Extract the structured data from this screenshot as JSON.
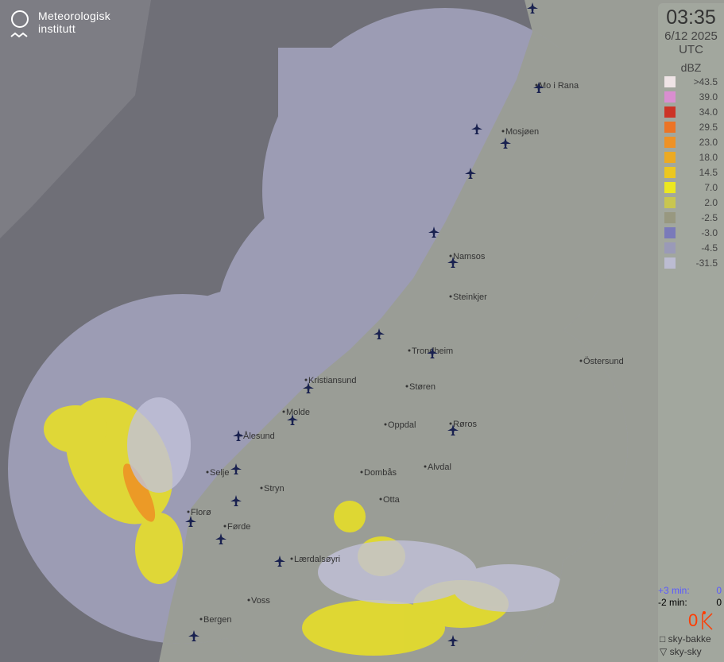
{
  "logo": {
    "line1": "Meteorologisk",
    "line2": "institutt"
  },
  "time": "03:35",
  "date": "6/12 2025",
  "timezone": "UTC",
  "legend": {
    "unit": "dBZ",
    "items": [
      {
        "label": ">43.5",
        "color": "#efe4e6"
      },
      {
        "label": "39.0",
        "color": "#d98ed0"
      },
      {
        "label": "34.0",
        "color": "#cc3326"
      },
      {
        "label": "29.5",
        "color": "#ec7426"
      },
      {
        "label": "23.0",
        "color": "#ee9226"
      },
      {
        "label": "18.0",
        "color": "#ecaa22"
      },
      {
        "label": "14.5",
        "color": "#ecc720"
      },
      {
        "label": "7.0",
        "color": "#ece820"
      },
      {
        "label": "2.0",
        "color": "#c9c650"
      },
      {
        "label": "-2.5",
        "color": "#989880"
      },
      {
        "label": "-3.0",
        "color": "#7a7aba"
      },
      {
        "label": "-4.5",
        "color": "#9a9ab8"
      },
      {
        "label": "-31.5",
        "color": "#bcbcd2"
      }
    ]
  },
  "lightning": {
    "plus3_label": "+3 min:",
    "plus3_value": "0",
    "minus2_label": "-2 min:",
    "minus2_value": "0",
    "count": "0",
    "types": [
      {
        "symbol": "□",
        "label": "sky-bakke"
      },
      {
        "symbol": "▽",
        "label": "sky-sky"
      }
    ]
  },
  "cities": [
    "Mo i Rana",
    "Mosjøen",
    "Namsos",
    "Steinkjer",
    "Trondheim",
    "Östersund",
    "Kristiansund",
    "Støren",
    "Molde",
    "Ålesund",
    "Oppdal",
    "Røros",
    "Selje",
    "Stryn",
    "Dombås",
    "Alvdal",
    "Florø",
    "Otta",
    "Førde",
    "Lærdalsøyri",
    "Voss",
    "Bergen"
  ],
  "colors": {
    "outside_sea": "#6f6f77",
    "outside_land": "#9a9d96",
    "coverage_sea": "#9c9cb4",
    "coverage_land": "#b0b4aa",
    "water": "#7e7f96"
  }
}
